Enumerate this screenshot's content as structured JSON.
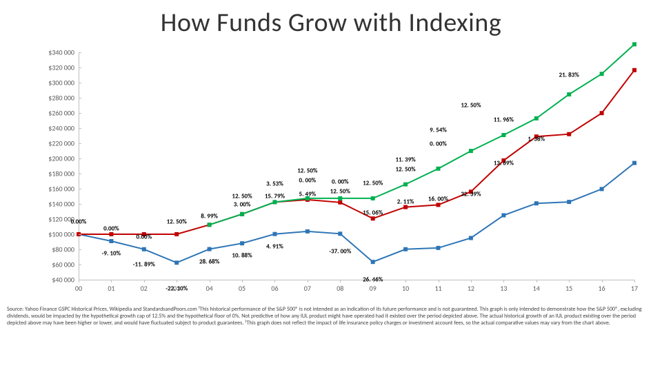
{
  "title": "How Funds Grow with Indexing",
  "chart": {
    "type": "line",
    "background_color": "#ffffff",
    "y_axis": {
      "min": 40000,
      "max": 340000,
      "step": 20000,
      "labels": [
        "$40 000",
        "$60 000",
        "$80 000",
        "$100 000",
        "$120 000",
        "$140 000",
        "$160 000",
        "$180 000",
        "$200 000",
        "$220 000",
        "$240 000",
        "$260 000",
        "$280 000",
        "$300 000",
        "$320 000",
        "$340 000"
      ],
      "label_fontsize": 10,
      "label_color": "#595959"
    },
    "x_axis": {
      "labels": [
        "00",
        "01",
        "02",
        "03",
        "04",
        "05",
        "06",
        "07",
        "08",
        "09",
        "10",
        "11",
        "12",
        "13",
        "14",
        "15",
        "16",
        "17"
      ],
      "label_fontsize": 10,
      "label_color": "#595959"
    },
    "series": [
      {
        "name": "blue",
        "color": "#2e75b6",
        "marker": "square",
        "marker_size": 6,
        "line_width": 2,
        "values": [
          100000,
          90900,
          80188,
          62466,
          80377,
          88006,
          100251,
          103766,
          100652,
          63413,
          80205,
          81900,
          94987,
          125035,
          140720,
          142661,
          159591,
          193978
        ]
      },
      {
        "name": "red",
        "color": "#c00000",
        "marker": "square",
        "marker_size": 6,
        "line_width": 2,
        "values": [
          100000,
          100000,
          100000,
          100000,
          112500,
          126563,
          142383,
          145522,
          142036,
          120750,
          135844,
          138710,
          156049,
          197337,
          228921,
          232079,
          259838,
          316561
        ]
      },
      {
        "name": "green",
        "color": "#00b050",
        "marker": "square",
        "marker_size": 6,
        "line_width": 2,
        "values": [
          null,
          null,
          null,
          null,
          112500,
          126563,
          142383,
          147408,
          147408,
          147408,
          165834,
          186563,
          209883,
          230895,
          252917,
          284532,
          311677,
          350636
        ]
      }
    ],
    "annotations": [
      {
        "text": "0.00%",
        "x": 0,
        "dy": -18,
        "series": 0
      },
      {
        "text": "0.00%",
        "x": 1,
        "dy": -18,
        "series": 0
      },
      {
        "text": "0.00%",
        "x": 2,
        "dy": -18,
        "series": 0
      },
      {
        "text": "-9. 10%",
        "x": 1,
        "dy": 18,
        "series": 0
      },
      {
        "text": "-11. 89%",
        "x": 2,
        "dy": 22,
        "series": 0
      },
      {
        "text": "-22. 10%",
        "x": 3,
        "dy": 38,
        "series": 0
      },
      {
        "text": "12. 50%",
        "x": 3,
        "dy": -18,
        "series": 3
      },
      {
        "text": "28. 68%",
        "x": 4,
        "dy": 18,
        "series": 0
      },
      {
        "text": "8. 99%",
        "x": 4,
        "dy": -12,
        "series": 3
      },
      {
        "text": "10. 88%",
        "x": 5,
        "dy": 18,
        "series": 0
      },
      {
        "text": "3. 00%",
        "x": 5,
        "dy": -14,
        "series": 3
      },
      {
        "text": "12. 50%",
        "x": 5,
        "dy": -26,
        "series": 3
      },
      {
        "text": "4. 91%",
        "x": 6,
        "dy": 18,
        "series": 0
      },
      {
        "text": "15. 79%",
        "x": 6,
        "dy": -8,
        "series": 1
      },
      {
        "text": "3. 53%",
        "x": 6,
        "dy": -26,
        "series": 3
      },
      {
        "text": "5. 49%",
        "x": 7,
        "dy": -8,
        "series": 1
      },
      {
        "text": "0. 00%",
        "x": 7,
        "dy": -26,
        "series": 3
      },
      {
        "text": "12. 50%",
        "x": 7,
        "dy": -40,
        "series": 3
      },
      {
        "text": "-37. 00%",
        "x": 8,
        "dy": 26,
        "series": 0
      },
      {
        "text": "12. 50%",
        "x": 8,
        "dy": -10,
        "series": 3
      },
      {
        "text": "0. 00%",
        "x": 8,
        "dy": -24,
        "series": 3
      },
      {
        "text": "26. 46%",
        "x": 9,
        "dy": 26,
        "series": 0
      },
      {
        "text": "15. 06%",
        "x": 9,
        "dy": -8,
        "series": 1
      },
      {
        "text": "12. 50%",
        "x": 9,
        "dy": -22,
        "series": 3
      },
      {
        "text": "2. 11%",
        "x": 10,
        "dy": -8,
        "series": 1
      },
      {
        "text": "12. 50%",
        "x": 10,
        "dy": -22,
        "series": 3
      },
      {
        "text": "11. 39%",
        "x": 10,
        "dy": -36,
        "series": 3
      },
      {
        "text": "16. 00%",
        "x": 11,
        "dy": -8,
        "series": 1
      },
      {
        "text": "0. 00%",
        "x": 11,
        "dy": -36,
        "series": 3
      },
      {
        "text": "9. 54%",
        "x": 11,
        "dy": -56,
        "series": 3
      },
      {
        "text": "32. 39%",
        "x": 12,
        "dy": 4,
        "series": 1
      },
      {
        "text": "12. 50%",
        "x": 12,
        "dy": -66,
        "series": 3
      },
      {
        "text": "13. 69%",
        "x": 13,
        "dy": 4,
        "series": 1
      },
      {
        "text": "11. 96%",
        "x": 13,
        "dy": -22,
        "series": 3
      },
      {
        "text": "1. 38%",
        "x": 14,
        "dy": 4,
        "series": 1
      },
      {
        "text": "21. 83%",
        "x": 15,
        "dy": -28,
        "series": 3
      }
    ]
  },
  "footnote": "Source: Yahoo Finance GSPC Historical Prices, Wikipedia and StandardsandPoors.com ¹This historical performance of the S&P 500® is not intended as an indication of its future performance and is not guaranteed. This graph is only intended to demonstrate how the S&P 500®, excluding dividends, would be impacted by the hypothetical growth cap of 12.5% and the hypothetical floor of 0%. Not predictive of how any IUL product might have operated had it existed over the period depicted above. The actual historical growth of an IUL product existing over the period depicted above may have been higher or lower, and would have fluctuated subject to product guarantees. ²This graph does not reflect the impact of life insurance policy charges or investment account fees, so the actual comparative values may vary from the chart above."
}
